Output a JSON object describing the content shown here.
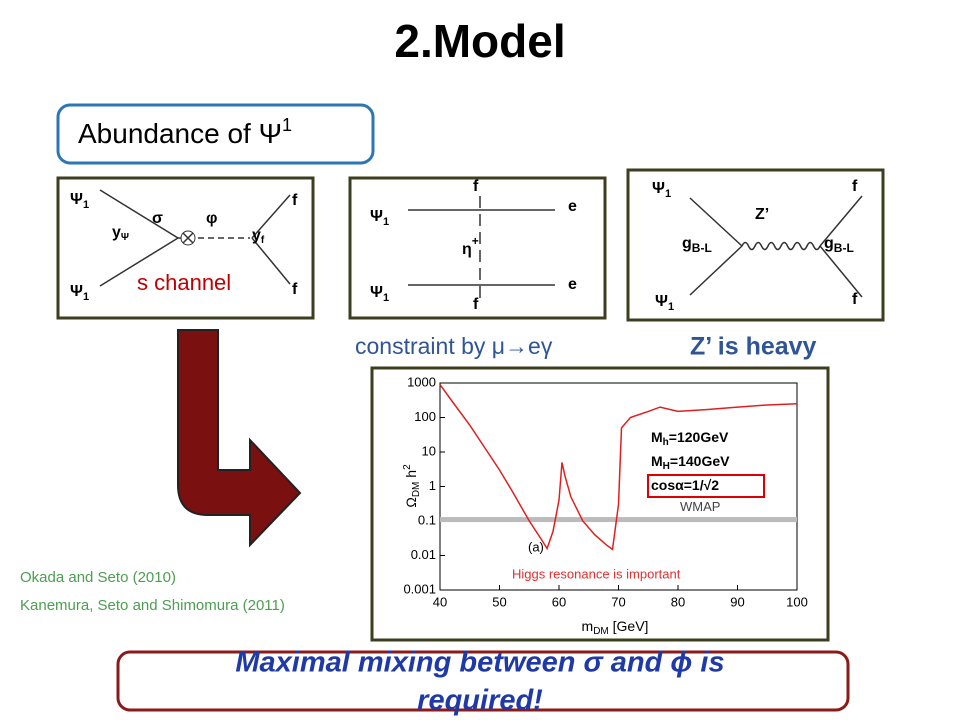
{
  "title": "2.Model",
  "abundance": {
    "text": "Abundance of Ψ",
    "sup": "1"
  },
  "diagram_s": {
    "psi": "Ψ",
    "psi_sub": "1",
    "f": "f",
    "sigma": "σ",
    "phi": "φ",
    "y": "y",
    "y_psi_sub": "Ψ",
    "y_f_sub": "f",
    "channel": "s channel"
  },
  "diagram_t": {
    "psi": "Ψ",
    "psi_sub": "1",
    "f": "f",
    "e": "e",
    "eta": "η",
    "eta_sup": "+"
  },
  "diagram_z": {
    "psi": "Ψ",
    "psi_sub": "1",
    "f": "f",
    "zprime": "Z’",
    "g": "g",
    "g_sub": "B-L"
  },
  "caption_constraint": "constraint by μ→eγ",
  "caption_heavy": "Z’ is heavy",
  "plot": {
    "type": "line",
    "x_label": [
      "m",
      "DM",
      " [GeV]"
    ],
    "y_label": [
      "Ω",
      "DM",
      " h",
      "2"
    ],
    "xlim": [
      40,
      100
    ],
    "xticks": [
      40,
      50,
      60,
      70,
      80,
      90,
      100
    ],
    "ylim": [
      0.001,
      1000
    ],
    "yticks": [
      0.001,
      0.01,
      0.1,
      1,
      10,
      100,
      1000
    ],
    "log_y": true,
    "color": "#e02020",
    "x": [
      40,
      42,
      45,
      48,
      50,
      52,
      55,
      57,
      58,
      59,
      60,
      60.5,
      61,
      62,
      64,
      66,
      68,
      69,
      70,
      70.5,
      72,
      75,
      77,
      80,
      85,
      90,
      95,
      100
    ],
    "values": [
      900,
      300,
      60,
      10,
      3,
      0.8,
      0.1,
      0.03,
      0.016,
      0.05,
      0.4,
      5,
      2,
      0.5,
      0.1,
      0.04,
      0.02,
      0.015,
      0.3,
      50,
      100,
      150,
      200,
      150,
      170,
      200,
      230,
      250
    ],
    "wmap_level": 0.11,
    "wmap": "WMAP",
    "panel": "(a)",
    "params": [
      [
        "M",
        "h",
        "=120GeV"
      ],
      [
        "M",
        "H",
        "=140GeV"
      ],
      [
        "cosα=1/√2"
      ]
    ],
    "note": "Higgs resonance is important"
  },
  "references": [
    "Okada and Seto (2010)",
    "Kanemura, Seto and Shimomura (2011)"
  ],
  "conclusion": [
    "Maximal mixing between σ and ϕ is",
    "required!"
  ]
}
